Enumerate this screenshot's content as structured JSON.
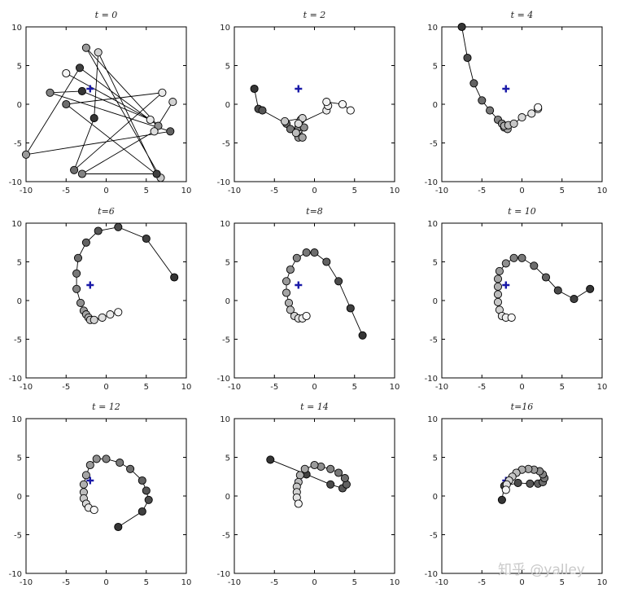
{
  "watermark": "知乎 @yalley",
  "chart_data": [
    {
      "type": "scatter",
      "title": "t = 0",
      "xlim": [
        -10,
        10
      ],
      "ylim": [
        -10,
        10
      ],
      "xticks": [
        -10,
        -5,
        0,
        5,
        10
      ],
      "yticks": [
        -10,
        -5,
        0,
        5,
        10
      ],
      "grid": false,
      "target_marker": {
        "x": -2,
        "y": 2,
        "color": "#1a1aa8"
      },
      "points": [
        {
          "x": -5,
          "y": 4,
          "shade": 0.95
        },
        {
          "x": 5.5,
          "y": -2,
          "shade": 0.9
        },
        {
          "x": -3,
          "y": 1.7,
          "shade": 0.1
        },
        {
          "x": -7,
          "y": 1.5,
          "shade": 0.45
        },
        {
          "x": 8,
          "y": -3.5,
          "shade": 0.3
        },
        {
          "x": -10,
          "y": -6.5,
          "shade": 0.55
        },
        {
          "x": -3.3,
          "y": 4.7,
          "shade": 0.15
        },
        {
          "x": 6.5,
          "y": -2.8,
          "shade": 0.5
        },
        {
          "x": -2.5,
          "y": 7.3,
          "shade": 0.55
        },
        {
          "x": 6.8,
          "y": -9.5,
          "shade": 0.75
        },
        {
          "x": -5,
          "y": 0,
          "shade": 0.35
        },
        {
          "x": 7,
          "y": 1.5,
          "shade": 0.9
        },
        {
          "x": -4,
          "y": -8.5,
          "shade": 0.35
        },
        {
          "x": -1.5,
          "y": -1.8,
          "shade": 0.1
        },
        {
          "x": -1,
          "y": 6.7,
          "shade": 0.8
        },
        {
          "x": 6.3,
          "y": -9,
          "shade": 0.15
        },
        {
          "x": -3,
          "y": -9,
          "shade": 0.45
        },
        {
          "x": 6,
          "y": -3.5,
          "shade": 0.85
        },
        {
          "x": 8.3,
          "y": 0.3,
          "shade": 0.8
        }
      ]
    },
    {
      "type": "scatter",
      "title": "t = 2",
      "xlim": [
        -10,
        10
      ],
      "ylim": [
        -10,
        10
      ],
      "xticks": [
        -10,
        -5,
        0,
        5,
        10
      ],
      "yticks": [
        -10,
        -5,
        0,
        5,
        10
      ],
      "grid": false,
      "target_marker": {
        "x": -2,
        "y": 2,
        "color": "#1a1aa8"
      },
      "points": [
        {
          "x": -7.5,
          "y": 2,
          "shade": 0.1
        },
        {
          "x": -7,
          "y": -0.6,
          "shade": 0.2
        },
        {
          "x": -6.5,
          "y": -0.8,
          "shade": 0.25
        },
        {
          "x": -3.5,
          "y": -2.5,
          "shade": 0.35
        },
        {
          "x": -3,
          "y": -3.2,
          "shade": 0.4
        },
        {
          "x": -2,
          "y": -3,
          "shade": 0.45
        },
        {
          "x": -1.3,
          "y": -3,
          "shade": 0.5
        },
        {
          "x": -2,
          "y": -4.3,
          "shade": 0.55
        },
        {
          "x": -1.5,
          "y": -4.3,
          "shade": 0.6
        },
        {
          "x": -1.7,
          "y": -2,
          "shade": 0.65
        },
        {
          "x": -2.3,
          "y": -3.7,
          "shade": 0.7
        },
        {
          "x": -3.7,
          "y": -2.2,
          "shade": 0.75
        },
        {
          "x": -1.5,
          "y": -1.8,
          "shade": 0.8
        },
        {
          "x": -2,
          "y": -2.5,
          "shade": 0.85
        },
        {
          "x": 1.5,
          "y": -0.8,
          "shade": 0.9
        },
        {
          "x": 1.7,
          "y": -0.2,
          "shade": 0.92
        },
        {
          "x": 1.5,
          "y": 0.3,
          "shade": 0.94
        },
        {
          "x": 3.5,
          "y": 0,
          "shade": 0.96
        },
        {
          "x": 4.5,
          "y": -0.8,
          "shade": 0.98
        }
      ]
    },
    {
      "type": "scatter",
      "title": "t = 4",
      "xlim": [
        -10,
        10
      ],
      "ylim": [
        -10,
        10
      ],
      "xticks": [
        -10,
        -5,
        0,
        5,
        10
      ],
      "yticks": [
        -10,
        -5,
        0,
        5,
        10
      ],
      "grid": false,
      "target_marker": {
        "x": -2,
        "y": 2,
        "color": "#1a1aa8"
      },
      "points": [
        {
          "x": -7.5,
          "y": 10,
          "shade": 0.1
        },
        {
          "x": -6.8,
          "y": 6,
          "shade": 0.2
        },
        {
          "x": -6,
          "y": 2.7,
          "shade": 0.3
        },
        {
          "x": -5,
          "y": 0.5,
          "shade": 0.35
        },
        {
          "x": -4,
          "y": -0.8,
          "shade": 0.4
        },
        {
          "x": -3,
          "y": -2,
          "shade": 0.45
        },
        {
          "x": -2.5,
          "y": -2.5,
          "shade": 0.5
        },
        {
          "x": -2.2,
          "y": -3,
          "shade": 0.55
        },
        {
          "x": -1.8,
          "y": -3.2,
          "shade": 0.6
        },
        {
          "x": -2.2,
          "y": -2.8,
          "shade": 0.65
        },
        {
          "x": -1.7,
          "y": -2.7,
          "shade": 0.7
        },
        {
          "x": -1,
          "y": -2.5,
          "shade": 0.75
        },
        {
          "x": 0,
          "y": -1.7,
          "shade": 0.82
        },
        {
          "x": 1.2,
          "y": -1.2,
          "shade": 0.88
        },
        {
          "x": 2,
          "y": -0.6,
          "shade": 0.93
        },
        {
          "x": 2,
          "y": -0.4,
          "shade": 0.97
        }
      ]
    },
    {
      "type": "scatter",
      "title": "t=6",
      "xlim": [
        -10,
        10
      ],
      "ylim": [
        -10,
        10
      ],
      "xticks": [
        -10,
        -5,
        0,
        5,
        10
      ],
      "yticks": [
        -10,
        -5,
        0,
        5,
        10
      ],
      "grid": false,
      "target_marker": {
        "x": -2,
        "y": 2,
        "color": "#1a1aa8"
      },
      "points": [
        {
          "x": 8.5,
          "y": 3,
          "shade": 0.1
        },
        {
          "x": 5,
          "y": 8,
          "shade": 0.15
        },
        {
          "x": 1.5,
          "y": 9.5,
          "shade": 0.2
        },
        {
          "x": -1,
          "y": 9,
          "shade": 0.25
        },
        {
          "x": -2.5,
          "y": 7.5,
          "shade": 0.3
        },
        {
          "x": -3.5,
          "y": 5.5,
          "shade": 0.35
        },
        {
          "x": -3.7,
          "y": 3.5,
          "shade": 0.4
        },
        {
          "x": -3.7,
          "y": 1.5,
          "shade": 0.45
        },
        {
          "x": -3.2,
          "y": -0.3,
          "shade": 0.5
        },
        {
          "x": -2.8,
          "y": -1.3,
          "shade": 0.55
        },
        {
          "x": -2.5,
          "y": -1.8,
          "shade": 0.6
        },
        {
          "x": -2.2,
          "y": -2.2,
          "shade": 0.65
        },
        {
          "x": -2,
          "y": -2.5,
          "shade": 0.72
        },
        {
          "x": -1.5,
          "y": -2.5,
          "shade": 0.8
        },
        {
          "x": -0.5,
          "y": -2.2,
          "shade": 0.86
        },
        {
          "x": 0.5,
          "y": -1.8,
          "shade": 0.92
        },
        {
          "x": 1.5,
          "y": -1.5,
          "shade": 0.97
        }
      ]
    },
    {
      "type": "scatter",
      "title": "t=8",
      "xlim": [
        -10,
        10
      ],
      "ylim": [
        -10,
        10
      ],
      "xticks": [
        -10,
        -5,
        0,
        5,
        10
      ],
      "yticks": [
        -10,
        -5,
        0,
        5,
        10
      ],
      "grid": false,
      "target_marker": {
        "x": -2,
        "y": 2,
        "color": "#1a1aa8"
      },
      "points": [
        {
          "x": 6,
          "y": -4.5,
          "shade": 0.1
        },
        {
          "x": 4.5,
          "y": -1,
          "shade": 0.15
        },
        {
          "x": 3,
          "y": 2.5,
          "shade": 0.2
        },
        {
          "x": 1.5,
          "y": 5,
          "shade": 0.3
        },
        {
          "x": 0,
          "y": 6.2,
          "shade": 0.35
        },
        {
          "x": -1,
          "y": 6.2,
          "shade": 0.4
        },
        {
          "x": -2.2,
          "y": 5.5,
          "shade": 0.45
        },
        {
          "x": -3,
          "y": 4,
          "shade": 0.5
        },
        {
          "x": -3.5,
          "y": 2.5,
          "shade": 0.55
        },
        {
          "x": -3.5,
          "y": 1,
          "shade": 0.6
        },
        {
          "x": -3.2,
          "y": -0.3,
          "shade": 0.65
        },
        {
          "x": -3,
          "y": -1.2,
          "shade": 0.72
        },
        {
          "x": -2.5,
          "y": -2,
          "shade": 0.8
        },
        {
          "x": -2,
          "y": -2.3,
          "shade": 0.86
        },
        {
          "x": -1.5,
          "y": -2.3,
          "shade": 0.92
        },
        {
          "x": -1,
          "y": -2,
          "shade": 0.97
        }
      ]
    },
    {
      "type": "scatter",
      "title": "t = 10",
      "xlim": [
        -10,
        10
      ],
      "ylim": [
        -10,
        10
      ],
      "xticks": [
        -10,
        -5,
        0,
        5,
        10
      ],
      "yticks": [
        -10,
        -5,
        0,
        5,
        10
      ],
      "grid": false,
      "target_marker": {
        "x": -2,
        "y": 2,
        "color": "#1a1aa8"
      },
      "points": [
        {
          "x": 8.5,
          "y": 1.5,
          "shade": 0.1
        },
        {
          "x": 6.5,
          "y": 0.2,
          "shade": 0.15
        },
        {
          "x": 4.5,
          "y": 1.3,
          "shade": 0.2
        },
        {
          "x": 3,
          "y": 3,
          "shade": 0.3
        },
        {
          "x": 1.5,
          "y": 4.5,
          "shade": 0.35
        },
        {
          "x": 0,
          "y": 5.5,
          "shade": 0.4
        },
        {
          "x": -1,
          "y": 5.5,
          "shade": 0.45
        },
        {
          "x": -2,
          "y": 4.8,
          "shade": 0.5
        },
        {
          "x": -2.8,
          "y": 3.8,
          "shade": 0.55
        },
        {
          "x": -3,
          "y": 2.8,
          "shade": 0.6
        },
        {
          "x": -3,
          "y": 1.8,
          "shade": 0.65
        },
        {
          "x": -3,
          "y": 0.8,
          "shade": 0.7
        },
        {
          "x": -3,
          "y": -0.2,
          "shade": 0.75
        },
        {
          "x": -2.8,
          "y": -1.2,
          "shade": 0.8
        },
        {
          "x": -2.5,
          "y": -2,
          "shade": 0.86
        },
        {
          "x": -2,
          "y": -2.2,
          "shade": 0.92
        },
        {
          "x": -1.3,
          "y": -2.2,
          "shade": 0.97
        }
      ]
    },
    {
      "type": "scatter",
      "title": "t = 12",
      "xlim": [
        -10,
        10
      ],
      "ylim": [
        -10,
        10
      ],
      "xticks": [
        -10,
        -5,
        0,
        5,
        10
      ],
      "yticks": [
        -10,
        -5,
        0,
        5,
        10
      ],
      "grid": false,
      "target_marker": {
        "x": -2,
        "y": 2,
        "color": "#1a1aa8"
      },
      "points": [
        {
          "x": 1.5,
          "y": -4,
          "shade": 0.1
        },
        {
          "x": 4.5,
          "y": -2,
          "shade": 0.15
        },
        {
          "x": 5.3,
          "y": -0.5,
          "shade": 0.2
        },
        {
          "x": 5,
          "y": 0.7,
          "shade": 0.25
        },
        {
          "x": 4.5,
          "y": 2,
          "shade": 0.3
        },
        {
          "x": 3,
          "y": 3.5,
          "shade": 0.35
        },
        {
          "x": 1.7,
          "y": 4.3,
          "shade": 0.4
        },
        {
          "x": 0,
          "y": 4.8,
          "shade": 0.45
        },
        {
          "x": -1.2,
          "y": 4.8,
          "shade": 0.5
        },
        {
          "x": -2,
          "y": 4,
          "shade": 0.55
        },
        {
          "x": -2.5,
          "y": 2.7,
          "shade": 0.6
        },
        {
          "x": -2.8,
          "y": 1.5,
          "shade": 0.65
        },
        {
          "x": -2.8,
          "y": 0.5,
          "shade": 0.7
        },
        {
          "x": -2.8,
          "y": -0.3,
          "shade": 0.76
        },
        {
          "x": -2.5,
          "y": -1,
          "shade": 0.82
        },
        {
          "x": -2.2,
          "y": -1.5,
          "shade": 0.9
        },
        {
          "x": -1.5,
          "y": -1.8,
          "shade": 0.97
        }
      ]
    },
    {
      "type": "scatter",
      "title": "t = 14",
      "xlim": [
        -10,
        10
      ],
      "ylim": [
        -10,
        10
      ],
      "xticks": [
        -10,
        -5,
        0,
        5,
        10
      ],
      "yticks": [
        -10,
        -5,
        0,
        5,
        10
      ],
      "grid": false,
      "target_marker": {
        "x": -2,
        "y": 2,
        "color": "#1a1aa8"
      },
      "points": [
        {
          "x": -5.5,
          "y": 4.7,
          "shade": 0.1
        },
        {
          "x": -1,
          "y": 2.8,
          "shade": 0.15
        },
        {
          "x": 2,
          "y": 1.5,
          "shade": 0.2
        },
        {
          "x": 3.5,
          "y": 1,
          "shade": 0.25
        },
        {
          "x": 4,
          "y": 1.5,
          "shade": 0.3
        },
        {
          "x": 3.8,
          "y": 2.3,
          "shade": 0.35
        },
        {
          "x": 3,
          "y": 3,
          "shade": 0.4
        },
        {
          "x": 2,
          "y": 3.5,
          "shade": 0.45
        },
        {
          "x": 0.8,
          "y": 3.8,
          "shade": 0.5
        },
        {
          "x": 0,
          "y": 4,
          "shade": 0.55
        },
        {
          "x": -1.2,
          "y": 3.5,
          "shade": 0.6
        },
        {
          "x": -1.8,
          "y": 2.7,
          "shade": 0.65
        },
        {
          "x": -2,
          "y": 1.8,
          "shade": 0.7
        },
        {
          "x": -2.2,
          "y": 1.2,
          "shade": 0.75
        },
        {
          "x": -2.2,
          "y": 0.5,
          "shade": 0.8
        },
        {
          "x": -2.2,
          "y": -0.2,
          "shade": 0.87
        },
        {
          "x": -2,
          "y": -1,
          "shade": 0.95
        }
      ]
    },
    {
      "type": "scatter",
      "title": "t=16",
      "xlim": [
        -10,
        10
      ],
      "ylim": [
        -10,
        10
      ],
      "xticks": [
        -10,
        -5,
        0,
        5,
        10
      ],
      "yticks": [
        -10,
        -5,
        0,
        5,
        10
      ],
      "grid": false,
      "target_marker": {
        "x": -2,
        "y": 2,
        "color": "#1a1aa8"
      },
      "points": [
        {
          "x": -2.5,
          "y": -0.5,
          "shade": 0.1
        },
        {
          "x": -2.2,
          "y": 1.3,
          "shade": 0.15
        },
        {
          "x": -0.5,
          "y": 1.7,
          "shade": 0.2
        },
        {
          "x": 1,
          "y": 1.6,
          "shade": 0.25
        },
        {
          "x": 2,
          "y": 1.6,
          "shade": 0.3
        },
        {
          "x": 2.6,
          "y": 1.8,
          "shade": 0.35
        },
        {
          "x": 2.8,
          "y": 2.3,
          "shade": 0.4
        },
        {
          "x": 2.6,
          "y": 2.8,
          "shade": 0.45
        },
        {
          "x": 2.2,
          "y": 3.2,
          "shade": 0.5
        },
        {
          "x": 1.5,
          "y": 3.4,
          "shade": 0.55
        },
        {
          "x": 0.8,
          "y": 3.5,
          "shade": 0.6
        },
        {
          "x": 0,
          "y": 3.4,
          "shade": 0.65
        },
        {
          "x": -0.7,
          "y": 3,
          "shade": 0.7
        },
        {
          "x": -1.2,
          "y": 2.5,
          "shade": 0.75
        },
        {
          "x": -1.6,
          "y": 2,
          "shade": 0.8
        },
        {
          "x": -1.9,
          "y": 1.5,
          "shade": 0.85
        },
        {
          "x": -2,
          "y": 0.8,
          "shade": 0.95
        }
      ]
    }
  ]
}
